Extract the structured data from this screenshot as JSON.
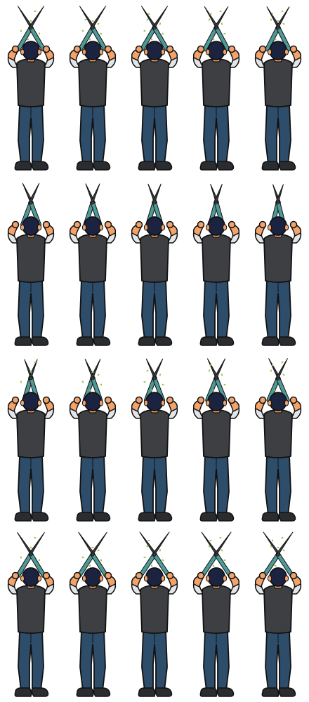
{
  "sprite_sheet": {
    "rows": 4,
    "columns": 5,
    "subject": "gardener-with-hedge-shears",
    "colors": {
      "skin": "#f2a36b",
      "hair": "#1b2340",
      "vest": "#3d3f42",
      "sleeve": "#e3e5e8",
      "jeans": "#2d4d6a",
      "shoes": "#2a2c2f",
      "blade": "#3c3f44",
      "handle": "#4f9a97",
      "clippings": "#9cc24b",
      "outline": "#111111"
    },
    "frames": [
      {
        "row": 1,
        "col": 1,
        "shear_open_fraction": 0.85,
        "clippings": 5
      },
      {
        "row": 1,
        "col": 2,
        "shear_open_fraction": 0.85,
        "clippings": 6
      },
      {
        "row": 1,
        "col": 3,
        "shear_open_fraction": 0.85,
        "clippings": 6
      },
      {
        "row": 1,
        "col": 4,
        "shear_open_fraction": 0.75,
        "clippings": 6
      },
      {
        "row": 1,
        "col": 5,
        "shear_open_fraction": 0.7,
        "clippings": 6
      },
      {
        "row": 2,
        "col": 1,
        "shear_open_fraction": 0.45,
        "clippings": 0
      },
      {
        "row": 2,
        "col": 2,
        "shear_open_fraction": 0.35,
        "clippings": 0
      },
      {
        "row": 2,
        "col": 3,
        "shear_open_fraction": 0.3,
        "clippings": 0
      },
      {
        "row": 2,
        "col": 4,
        "shear_open_fraction": 0.25,
        "clippings": 0
      },
      {
        "row": 2,
        "col": 5,
        "shear_open_fraction": 0.2,
        "clippings": 0
      },
      {
        "row": 3,
        "col": 1,
        "shear_open_fraction": 0.3,
        "clippings": 3
      },
      {
        "row": 3,
        "col": 2,
        "shear_open_fraction": 0.4,
        "clippings": 5
      },
      {
        "row": 3,
        "col": 3,
        "shear_open_fraction": 0.45,
        "clippings": 5
      },
      {
        "row": 3,
        "col": 4,
        "shear_open_fraction": 0.5,
        "clippings": 5
      },
      {
        "row": 3,
        "col": 5,
        "shear_open_fraction": 0.55,
        "clippings": 5
      },
      {
        "row": 4,
        "col": 1,
        "shear_open_fraction": 0.9,
        "clippings": 4
      },
      {
        "row": 4,
        "col": 2,
        "shear_open_fraction": 0.95,
        "clippings": 5
      },
      {
        "row": 4,
        "col": 3,
        "shear_open_fraction": 1.0,
        "clippings": 6
      },
      {
        "row": 4,
        "col": 4,
        "shear_open_fraction": 1.0,
        "clippings": 6
      },
      {
        "row": 4,
        "col": 5,
        "shear_open_fraction": 1.0,
        "clippings": 6
      }
    ]
  }
}
